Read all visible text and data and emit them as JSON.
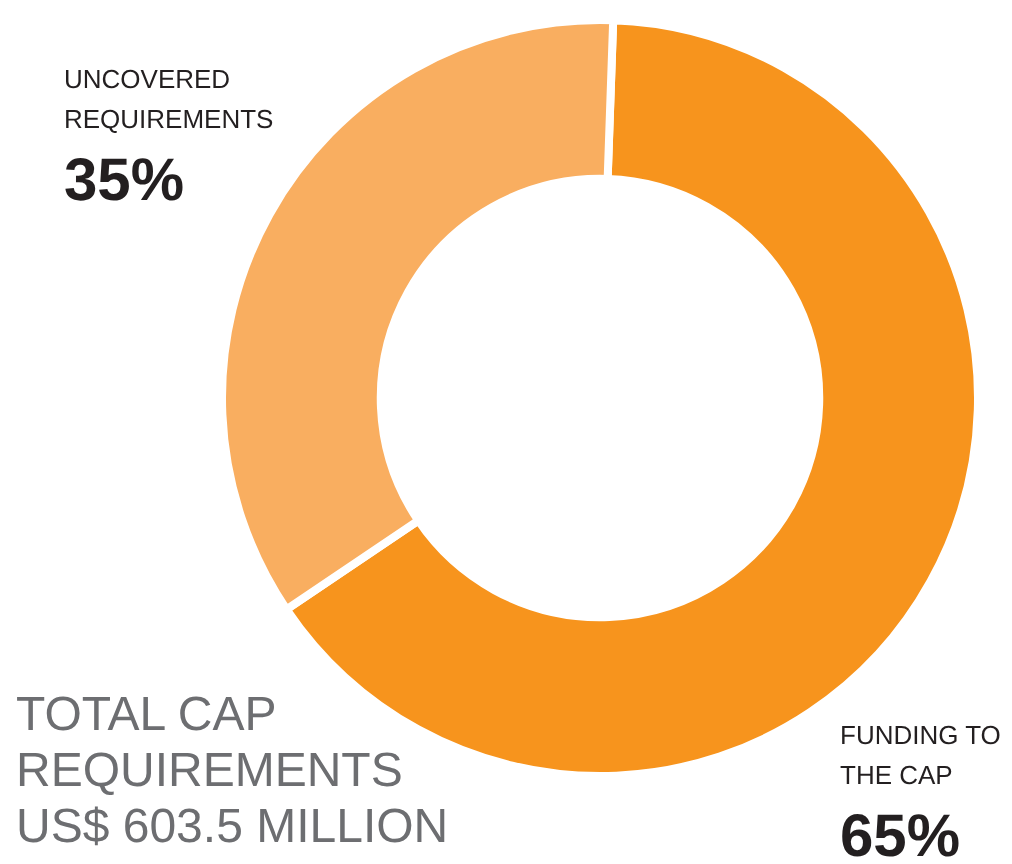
{
  "chart_data": {
    "type": "donut",
    "categories": [
      "FUNDING TO THE CAP",
      "UNCOVERED REQUIREMENTS"
    ],
    "values": [
      65,
      35
    ],
    "colors": [
      "#f7941d",
      "#f9ae60"
    ],
    "value_labels": [
      "65%",
      "35%"
    ],
    "annotations": [
      "TOTAL CAP REQUIREMENTS US$ 603.5 MILLION"
    ],
    "legend": false
  }
}
